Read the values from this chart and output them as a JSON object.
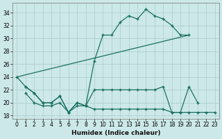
{
  "xlabel": "Humidex (Indice chaleur)",
  "bg_color": "#cce8e8",
  "grid_color": "#aacccc",
  "line_color": "#1a7060",
  "xlim": [
    -0.5,
    23.5
  ],
  "ylim": [
    17.5,
    35.5
  ],
  "xticks": [
    0,
    1,
    2,
    3,
    4,
    5,
    6,
    7,
    8,
    9,
    10,
    11,
    12,
    13,
    14,
    15,
    16,
    17,
    18,
    19,
    20,
    21,
    22,
    23
  ],
  "yticks": [
    18,
    20,
    22,
    24,
    26,
    28,
    30,
    32,
    34
  ],
  "curve_upper": {
    "x": [
      0,
      1,
      2,
      3,
      4,
      5,
      6,
      7,
      8,
      9,
      10,
      11,
      12,
      13,
      14,
      15,
      16,
      17,
      18,
      19,
      20
    ],
    "y": [
      24,
      22.5,
      21.5,
      20,
      20,
      21,
      18.5,
      20,
      19.5,
      26.5,
      30.5,
      30.5,
      32.5,
      33.5,
      33,
      34.5,
      33.5,
      33,
      32,
      30.5,
      30.5
    ]
  },
  "diag_line": {
    "x": [
      0,
      20
    ],
    "y": [
      24,
      30.5
    ]
  },
  "curve_mid": {
    "x": [
      1,
      2,
      3,
      4,
      5,
      6,
      7,
      8,
      9,
      10,
      11,
      12,
      13,
      14,
      15,
      16,
      17,
      18,
      19,
      20,
      21
    ],
    "y": [
      22.5,
      21.5,
      20,
      20,
      21,
      18.5,
      20,
      19.5,
      22,
      22,
      22,
      22,
      22,
      22,
      22,
      22,
      22.5,
      18.5,
      18.5,
      22.5,
      20
    ]
  },
  "curve_low": {
    "x": [
      1,
      2,
      3,
      4,
      5,
      6,
      7,
      8,
      9,
      10,
      11,
      12,
      13,
      14,
      15,
      16,
      17,
      18,
      19,
      20,
      21,
      22,
      23
    ],
    "y": [
      21.5,
      20,
      19.5,
      19.5,
      20,
      18.5,
      19.5,
      19.5,
      19,
      19,
      19,
      19,
      19,
      19,
      19,
      19,
      19,
      18.5,
      18.5,
      18.5,
      18.5,
      18.5,
      18.5
    ]
  }
}
